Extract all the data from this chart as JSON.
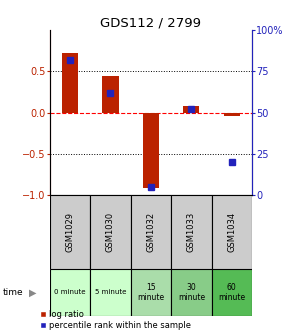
{
  "title": "GDS112 / 2799",
  "samples": [
    "GSM1029",
    "GSM1030",
    "GSM1032",
    "GSM1033",
    "GSM1034"
  ],
  "log_ratios": [
    0.72,
    0.45,
    -0.92,
    0.08,
    -0.04
  ],
  "percentile_ranks": [
    82,
    62,
    5,
    52,
    20
  ],
  "time_labels": [
    "0 minute",
    "5 minute",
    "15\nminute",
    "30\nminute",
    "60\nminute"
  ],
  "time_colors": [
    "#ccffcc",
    "#ccffcc",
    "#aaddaa",
    "#88cc88",
    "#55bb55"
  ],
  "sample_bg": "#cccccc",
  "bar_color_red": "#bb2200",
  "bar_color_blue": "#2222bb",
  "ylim_left": [
    -1,
    1
  ],
  "ylim_right": [
    0,
    100
  ],
  "yticks_left": [
    -1,
    -0.5,
    0,
    0.5
  ],
  "yticks_right": [
    0,
    25,
    50,
    75,
    100
  ],
  "hlines_dotted": [
    -0.5,
    0.5
  ],
  "hline_dashed": 0,
  "legend_red": "log ratio",
  "legend_blue": "percentile rank within the sample"
}
